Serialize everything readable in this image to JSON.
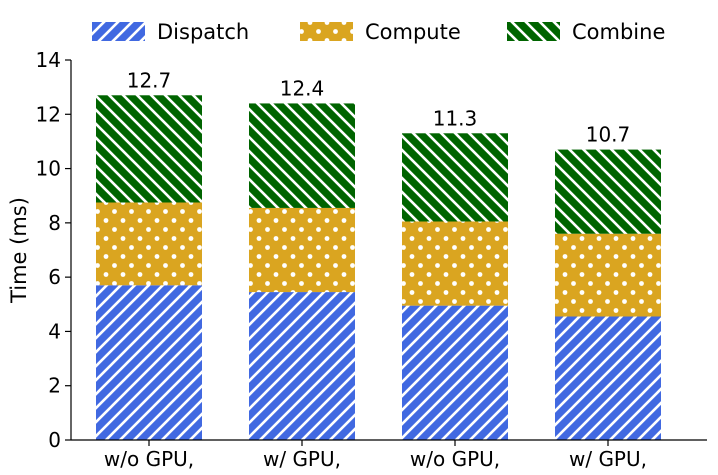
{
  "chart_data": {
    "type": "bar",
    "stacked": true,
    "title": "",
    "xlabel": "",
    "ylabel": "Time (ms)",
    "ylim": [
      0,
      14
    ],
    "yticks": [
      0,
      2,
      4,
      6,
      8,
      10,
      12,
      14
    ],
    "categories": [
      "w/o GPU,",
      "w/ GPU,",
      "w/o GPU,",
      "w/ GPU,"
    ],
    "series": [
      {
        "name": "Dispatch",
        "color": "#4169E1",
        "pattern": "diagonal-forward",
        "values": [
          5.7,
          5.45,
          4.95,
          4.55
        ]
      },
      {
        "name": "Compute",
        "color": "#DAA520",
        "pattern": "dots",
        "values": [
          3.05,
          3.1,
          3.1,
          3.05
        ]
      },
      {
        "name": "Combine",
        "color": "#006400",
        "pattern": "diagonal-back",
        "values": [
          3.95,
          3.85,
          3.25,
          3.1
        ]
      }
    ],
    "totals": [
      "12.7",
      "12.4",
      "11.3",
      "10.7"
    ],
    "legend": "top",
    "grid": false
  }
}
